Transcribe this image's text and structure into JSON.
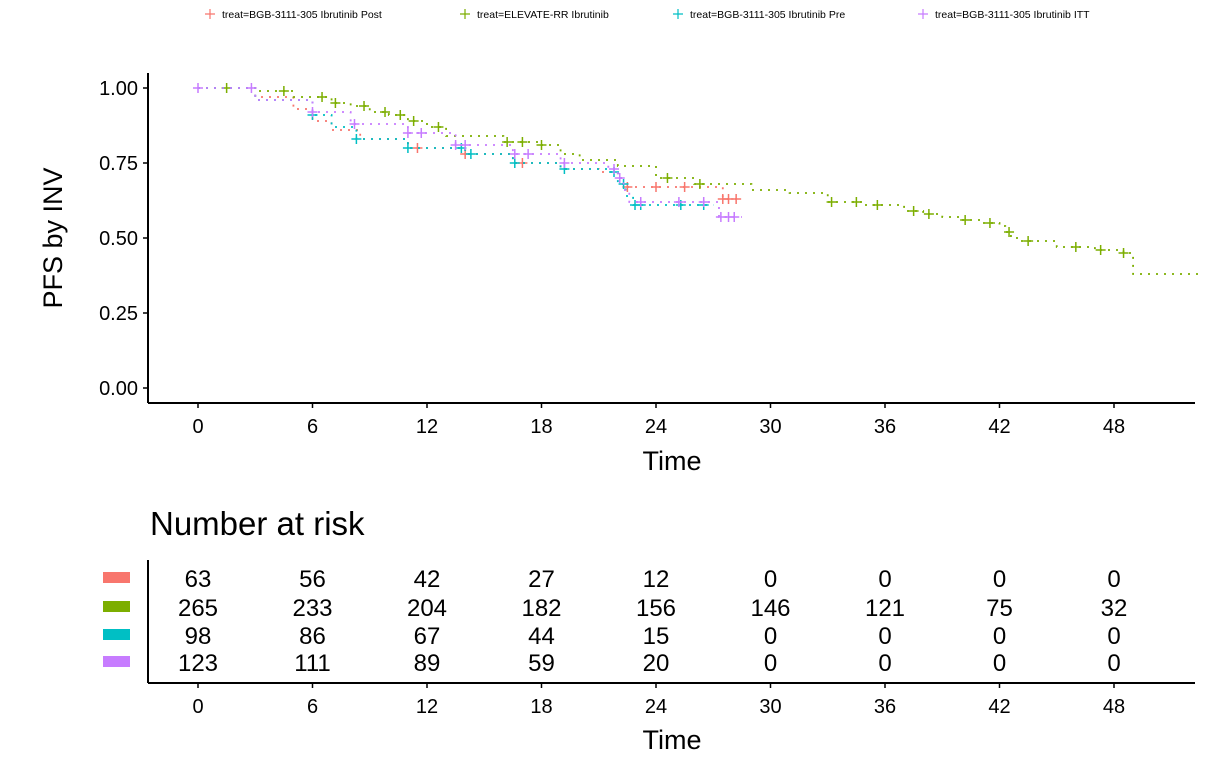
{
  "chart_data": [
    {
      "type": "line",
      "subtype": "kaplan-meier",
      "xlabel": "Time",
      "ylabel": "PFS by INV",
      "xlim": [
        -2.5,
        52.5
      ],
      "ylim": [
        -0.05,
        1.05
      ],
      "xticks": [
        0,
        6,
        12,
        18,
        24,
        30,
        36,
        42,
        48
      ],
      "yticks": [
        "0.00",
        "0.25",
        "0.50",
        "0.75",
        "1.00"
      ],
      "grid": false,
      "legend_position": "top",
      "series": [
        {
          "name": "treat=BGB-3111-305 Ibrutinib Post",
          "color": "#F8766D",
          "steps": [
            [
              0,
              1.0
            ],
            [
              3,
              0.97
            ],
            [
              5,
              0.93
            ],
            [
              6,
              0.89
            ],
            [
              7,
              0.86
            ],
            [
              8.5,
              0.83
            ],
            [
              11,
              0.8
            ],
            [
              14,
              0.78
            ],
            [
              16.5,
              0.75
            ],
            [
              19,
              0.73
            ],
            [
              21,
              0.72
            ],
            [
              22,
              0.7
            ],
            [
              22.3,
              0.67
            ],
            [
              27.5,
              0.63
            ]
          ],
          "end": 28.5,
          "censored": [
            11.5,
            14,
            17,
            22.5,
            24,
            25.5,
            27.5,
            27.8,
            28.2
          ]
        },
        {
          "name": "treat=ELEVATE-RR Ibrutinib",
          "color": "#7CAE00",
          "steps": [
            [
              0,
              1.0
            ],
            [
              3,
              0.99
            ],
            [
              5,
              0.97
            ],
            [
              7,
              0.95
            ],
            [
              8,
              0.94
            ],
            [
              9,
              0.92
            ],
            [
              10,
              0.91
            ],
            [
              11,
              0.89
            ],
            [
              12,
              0.87
            ],
            [
              13,
              0.84
            ],
            [
              16,
              0.82
            ],
            [
              18,
              0.81
            ],
            [
              19,
              0.78
            ],
            [
              20,
              0.76
            ],
            [
              22,
              0.74
            ],
            [
              24,
              0.7
            ],
            [
              26,
              0.68
            ],
            [
              29,
              0.66
            ],
            [
              31,
              0.65
            ],
            [
              33,
              0.62
            ],
            [
              35,
              0.61
            ],
            [
              37,
              0.59
            ],
            [
              38,
              0.58
            ],
            [
              39,
              0.57
            ],
            [
              40,
              0.56
            ],
            [
              41,
              0.55
            ],
            [
              42,
              0.54
            ],
            [
              42.3,
              0.52
            ],
            [
              42.6,
              0.5
            ],
            [
              43,
              0.49
            ],
            [
              45,
              0.47
            ],
            [
              47,
              0.46
            ],
            [
              48.5,
              0.45
            ],
            [
              49,
              0.38
            ]
          ],
          "end": 52.5,
          "censored": [
            1.5,
            4.5,
            6.5,
            7.2,
            8.7,
            9.8,
            10.6,
            11.3,
            12.6,
            16.2,
            17,
            18,
            24.6,
            26.3,
            33.2,
            34.5,
            35.6,
            37.5,
            38.3,
            40.2,
            41.5,
            42.5,
            43.5,
            46,
            47.3,
            48.5
          ]
        },
        {
          "name": "treat=BGB-3111-305 Ibrutinib Pre",
          "color": "#00BFC4",
          "steps": [
            [
              0,
              1.0
            ],
            [
              3,
              0.96
            ],
            [
              6,
              0.91
            ],
            [
              7,
              0.87
            ],
            [
              8.3,
              0.83
            ],
            [
              11,
              0.8
            ],
            [
              14,
              0.78
            ],
            [
              16.5,
              0.75
            ],
            [
              19,
              0.73
            ],
            [
              21.5,
              0.72
            ],
            [
              22,
              0.68
            ],
            [
              22.4,
              0.64
            ],
            [
              22.8,
              0.61
            ]
          ],
          "end": 27.0,
          "censored": [
            6,
            8.3,
            11,
            13.8,
            14.3,
            16.6,
            19.2,
            21.8,
            22.3,
            22.9,
            23.2,
            25.3,
            26.5
          ]
        },
        {
          "name": "treat=BGB-3111-305 Ibrutinib ITT",
          "color": "#C77CFF",
          "steps": [
            [
              0,
              1.0
            ],
            [
              3,
              0.96
            ],
            [
              6,
              0.92
            ],
            [
              8,
              0.88
            ],
            [
              11,
              0.85
            ],
            [
              13.5,
              0.81
            ],
            [
              16.5,
              0.78
            ],
            [
              19,
              0.75
            ],
            [
              21.5,
              0.73
            ],
            [
              22,
              0.7
            ],
            [
              22.3,
              0.66
            ],
            [
              22.6,
              0.62
            ],
            [
              27.3,
              0.57
            ]
          ],
          "end": 28.5,
          "censored": [
            0,
            2.8,
            6,
            8.2,
            11,
            11.7,
            13.5,
            14,
            16.6,
            17.3,
            19.2,
            21.8,
            22.1,
            23.2,
            25.2,
            26.5,
            27.4,
            27.8,
            28.1
          ]
        }
      ]
    },
    {
      "type": "table",
      "title": "Number at risk",
      "xlabel": "Time",
      "xticks": [
        0,
        6,
        12,
        18,
        24,
        30,
        36,
        42,
        48
      ],
      "rows": [
        {
          "color": "#F8766D",
          "values": [
            "63",
            "56",
            "42",
            "27",
            "12",
            "0",
            "0",
            "0",
            "0"
          ]
        },
        {
          "color": "#7CAE00",
          "values": [
            "265",
            "233",
            "204",
            "182",
            "156",
            "146",
            "121",
            "75",
            "32"
          ]
        },
        {
          "color": "#00BFC4",
          "values": [
            "98",
            "86",
            "67",
            "44",
            "15",
            "0",
            "0",
            "0",
            "0"
          ]
        },
        {
          "color": "#C77CFF",
          "values": [
            "123",
            "111",
            "89",
            "59",
            "20",
            "0",
            "0",
            "0",
            "0"
          ]
        }
      ]
    }
  ]
}
